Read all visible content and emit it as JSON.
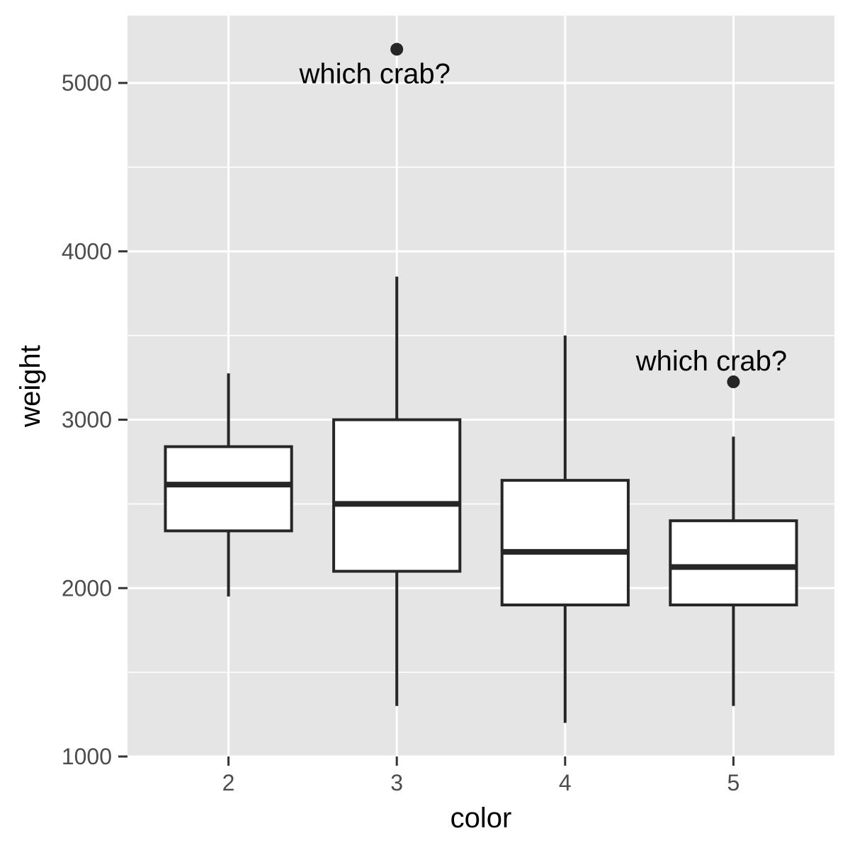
{
  "chart_data": {
    "type": "boxplot",
    "title": "",
    "xlabel": "color",
    "ylabel": "weight",
    "categories": [
      "2",
      "3",
      "4",
      "5"
    ],
    "y_ticks": [
      1000,
      2000,
      3000,
      4000,
      5000
    ],
    "ylim": [
      1000,
      5400
    ],
    "grid": true,
    "boxes": [
      {
        "category": "2",
        "whisker_low": 1950,
        "q1": 2340,
        "median": 2615,
        "q3": 2840,
        "whisker_high": 3275
      },
      {
        "category": "3",
        "whisker_low": 1300,
        "q1": 2100,
        "median": 2500,
        "q3": 3000,
        "whisker_high": 3850
      },
      {
        "category": "4",
        "whisker_low": 1200,
        "q1": 1900,
        "median": 2215,
        "q3": 2640,
        "whisker_high": 3500
      },
      {
        "category": "5",
        "whisker_low": 1300,
        "q1": 1900,
        "median": 2125,
        "q3": 2400,
        "whisker_high": 2900
      }
    ],
    "outliers": [
      {
        "category": "3",
        "value": 5200
      },
      {
        "category": "5",
        "value": 3225
      }
    ],
    "annotations": [
      {
        "category": "3",
        "value": 5200,
        "text": "which crab?",
        "placement": "below"
      },
      {
        "category": "5",
        "value": 3225,
        "text": "which crab?",
        "placement": "above"
      }
    ],
    "colors": {
      "panel": "#e5e5e5",
      "grid": "#ffffff",
      "box_fill": "#ffffff",
      "stroke": "#262626"
    }
  }
}
